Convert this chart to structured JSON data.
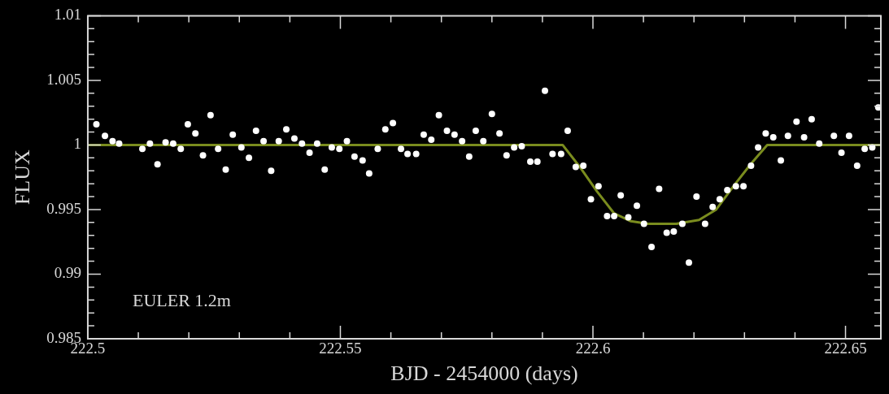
{
  "chart_data": {
    "type": "scatter",
    "xlabel": "BJD - 2454000 (days)",
    "ylabel": "FLUX",
    "xlim": [
      222.5,
      222.657
    ],
    "ylim": [
      0.985,
      1.01
    ],
    "xticks": [
      222.5,
      {
        "value": 222.51,
        "label": null
      },
      {
        "value": 222.52,
        "label": null
      },
      {
        "value": 222.53,
        "label": null
      },
      {
        "value": 222.54,
        "label": null
      },
      222.55,
      {
        "value": 222.56,
        "label": null
      },
      {
        "value": 222.57,
        "label": null
      },
      {
        "value": 222.58,
        "label": null
      },
      {
        "value": 222.59,
        "label": null
      },
      222.6,
      {
        "value": 222.61,
        "label": null
      },
      {
        "value": 222.62,
        "label": null
      },
      {
        "value": 222.63,
        "label": null
      },
      {
        "value": 222.64,
        "label": null
      },
      222.65
    ],
    "yticks": [
      0.985,
      {
        "value": 0.986,
        "label": null
      },
      {
        "value": 0.987,
        "label": null
      },
      {
        "value": 0.988,
        "label": null
      },
      {
        "value": 0.989,
        "label": null
      },
      0.99,
      {
        "value": 0.991,
        "label": null
      },
      {
        "value": 0.992,
        "label": null
      },
      {
        "value": 0.993,
        "label": null
      },
      {
        "value": 0.994,
        "label": null
      },
      0.995,
      {
        "value": 0.996,
        "label": null
      },
      {
        "value": 0.997,
        "label": null
      },
      {
        "value": 0.998,
        "label": null
      },
      {
        "value": 0.999,
        "label": null
      },
      1,
      {
        "value": 1.001,
        "label": null
      },
      {
        "value": 1.002,
        "label": null
      },
      {
        "value": 1.003,
        "label": null
      },
      {
        "value": 1.004,
        "label": null
      },
      1.005,
      {
        "value": 1.006,
        "label": null
      },
      {
        "value": 1.007,
        "label": null
      },
      {
        "value": 1.008,
        "label": null
      },
      {
        "value": 1.009,
        "label": null
      },
      1.01
    ],
    "marker": "circle",
    "grid": false,
    "legend": false,
    "annotations": [
      "EULER 1.2m"
    ],
    "series": [
      {
        "color": "#ffffff",
        "x": [
          222.5017,
          222.5034,
          222.5049,
          222.5062,
          222.5108,
          222.5123,
          222.5138,
          222.5154,
          222.5169,
          222.5184,
          222.5198,
          222.5213,
          222.5228,
          222.5243,
          222.5258,
          222.5273,
          222.5287,
          222.5304,
          222.5319,
          222.5333,
          222.5348,
          222.5363,
          222.5378,
          222.5393,
          222.5409,
          222.5424,
          222.5439,
          222.5454,
          222.5469,
          222.5483,
          222.5498,
          222.5513,
          222.5528,
          222.5544,
          222.5557,
          222.5574,
          222.5589,
          222.5604,
          222.562,
          222.5633,
          222.565,
          222.5665,
          222.568,
          222.5695,
          222.5711,
          222.5726,
          222.5741,
          222.5755,
          222.5768,
          222.5783,
          222.58,
          222.5815,
          222.5829,
          222.5844,
          222.5859,
          222.5876,
          222.589,
          222.5905,
          222.592,
          222.5937,
          222.595,
          222.5966,
          222.5981,
          222.5996,
          222.6011,
          222.6028,
          222.6042,
          222.6055,
          222.607,
          222.6087,
          222.6101,
          222.6116,
          222.6131,
          222.6146,
          222.616,
          222.6177,
          222.619,
          222.6205,
          222.6222,
          222.6237,
          222.6251,
          222.6266,
          222.6283,
          222.6298,
          222.6313,
          222.6327,
          222.6342,
          222.6357,
          222.6372,
          222.6386,
          222.6403,
          222.6418,
          222.6433,
          222.6448,
          222.6477,
          222.6492,
          222.6507,
          222.6523,
          222.6538,
          222.6553,
          222.6565
        ],
        "values": [
          1.0016,
          1.0007,
          1.0003,
          1.0001,
          0.9997,
          1.0001,
          0.9985,
          1.0002,
          1.0001,
          0.9997,
          1.0016,
          1.0009,
          0.9992,
          1.0023,
          0.9997,
          0.9981,
          1.0008,
          0.9998,
          0.999,
          1.0011,
          1.0003,
          0.998,
          1.0003,
          1.0012,
          1.0005,
          1.0001,
          0.9994,
          1.0001,
          0.9981,
          0.9998,
          0.9997,
          1.0003,
          0.9991,
          0.9988,
          0.9978,
          0.9997,
          1.0012,
          1.0017,
          0.9997,
          0.9993,
          0.9993,
          1.0008,
          1.0004,
          1.0023,
          1.0011,
          1.0008,
          1.0003,
          0.9991,
          1.0011,
          1.0003,
          1.0024,
          1.0009,
          0.9992,
          0.9998,
          0.9999,
          0.9987,
          0.9987,
          1.0042,
          0.9993,
          0.9993,
          1.0011,
          0.9983,
          0.9984,
          0.9958,
          0.9968,
          0.9945,
          0.9945,
          0.9961,
          0.9944,
          0.9953,
          0.9939,
          0.9921,
          0.9966,
          0.9932,
          0.9933,
          0.9939,
          0.9909,
          0.996,
          0.9939,
          0.9952,
          0.9958,
          0.9965,
          0.9968,
          0.9968,
          0.9984,
          0.9998,
          1.0009,
          1.0006,
          0.9988,
          1.0007,
          1.0018,
          1.0006,
          1.002,
          1.0001,
          1.0007,
          0.9994,
          1.0007,
          0.9984,
          0.9997,
          0.9998,
          1.0029
        ]
      },
      {
        "type": "line",
        "color": "#7a8c1e",
        "marker": "none",
        "x": [
          222.5,
          222.594,
          222.5974,
          222.6008,
          222.6042,
          222.6075,
          222.6109,
          222.6165,
          222.621,
          222.6244,
          222.6278,
          222.6312,
          222.6345,
          222.657
        ],
        "values": [
          1,
          1,
          0.9983,
          0.9964,
          0.9947,
          0.9941,
          0.9939,
          0.9939,
          0.9942,
          0.995,
          0.9968,
          0.9985,
          1,
          1
        ]
      }
    ]
  }
}
